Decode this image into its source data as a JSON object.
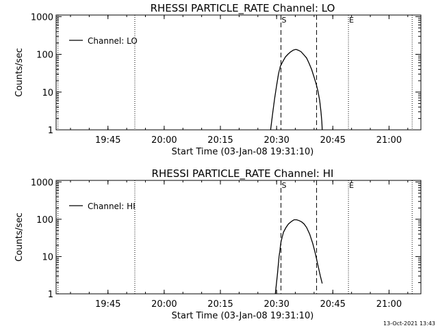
{
  "chart_data": [
    {
      "type": "line",
      "title": "RHESSI PARTICLE_RATE Channel: LO",
      "xlabel": "Start Time (03-Jan-08 19:31:10)",
      "ylabel": "Counts/sec",
      "y_scale": "log",
      "ylim": [
        1,
        1100
      ],
      "xlim": [
        "19:31:10",
        "21:08:30"
      ],
      "x_ticks": [
        "19:45",
        "20:00",
        "20:15",
        "20:30",
        "20:45",
        "21:00"
      ],
      "y_ticks": [
        "1",
        "10",
        "100",
        "1000"
      ],
      "legend": {
        "label": "Channel: LO",
        "placement": "top-left"
      },
      "markers": [
        {
          "time": "19:31:40",
          "style": "dotted",
          "label": ""
        },
        {
          "time": "19:52:10",
          "style": "dotted",
          "label": ""
        },
        {
          "time": "20:31:10",
          "style": "dashed",
          "label": "S"
        },
        {
          "time": "20:40:40",
          "style": "dashed",
          "label": ""
        },
        {
          "time": "20:49:10",
          "style": "dotted",
          "label": "E"
        },
        {
          "time": "21:06:10",
          "style": "dotted",
          "label": ""
        }
      ],
      "series": [
        {
          "name": "Channel: LO",
          "points": [
            [
              "20:28:24",
              1
            ],
            [
              "20:29:00",
              3
            ],
            [
              "20:29:30",
              7
            ],
            [
              "20:30:00",
              15
            ],
            [
              "20:30:30",
              30
            ],
            [
              "20:31:00",
              48
            ],
            [
              "20:31:40",
              65
            ],
            [
              "20:32:20",
              85
            ],
            [
              "20:33:00",
              100
            ],
            [
              "20:33:40",
              115
            ],
            [
              "20:34:30",
              130
            ],
            [
              "20:35:10",
              135
            ],
            [
              "20:35:50",
              128
            ],
            [
              "20:36:30",
              118
            ],
            [
              "20:37:10",
              100
            ],
            [
              "20:38:00",
              80
            ],
            [
              "20:38:40",
              58
            ],
            [
              "20:39:20",
              40
            ],
            [
              "20:40:00",
              25
            ],
            [
              "20:40:30",
              17
            ],
            [
              "20:41:00",
              11
            ],
            [
              "20:41:30",
              6
            ],
            [
              "20:41:50",
              3
            ],
            [
              "20:42:05",
              1.6
            ],
            [
              "20:42:10",
              1
            ]
          ]
        }
      ]
    },
    {
      "type": "line",
      "title": "RHESSI PARTICLE_RATE Channel: HI",
      "xlabel": "Start Time (03-Jan-08 19:31:10)",
      "ylabel": "Counts/sec",
      "y_scale": "log",
      "ylim": [
        1,
        1100
      ],
      "xlim": [
        "19:31:10",
        "21:08:30"
      ],
      "x_ticks": [
        "19:45",
        "20:00",
        "20:15",
        "20:30",
        "20:45",
        "21:00"
      ],
      "y_ticks": [
        "1",
        "10",
        "100",
        "1000"
      ],
      "legend": {
        "label": "Channel: HI",
        "placement": "top-left"
      },
      "markers": [
        {
          "time": "19:31:40",
          "style": "dotted",
          "label": ""
        },
        {
          "time": "19:52:10",
          "style": "dotted",
          "label": ""
        },
        {
          "time": "20:31:10",
          "style": "dashed",
          "label": "S"
        },
        {
          "time": "20:40:40",
          "style": "dashed",
          "label": ""
        },
        {
          "time": "20:49:10",
          "style": "dotted",
          "label": "E"
        },
        {
          "time": "21:06:10",
          "style": "dotted",
          "label": ""
        }
      ],
      "series": [
        {
          "name": "Channel: HI",
          "points": [
            [
              "20:29:40",
              1
            ],
            [
              "20:30:10",
              3
            ],
            [
              "20:30:40",
              10
            ],
            [
              "20:31:10",
              25
            ],
            [
              "20:31:50",
              45
            ],
            [
              "20:32:30",
              60
            ],
            [
              "20:33:10",
              75
            ],
            [
              "20:34:00",
              88
            ],
            [
              "20:34:40",
              97
            ],
            [
              "20:35:20",
              97
            ],
            [
              "20:36:00",
              92
            ],
            [
              "20:36:40",
              85
            ],
            [
              "20:37:20",
              75
            ],
            [
              "20:38:00",
              60
            ],
            [
              "20:38:50",
              40
            ],
            [
              "20:39:40",
              22
            ],
            [
              "20:40:20",
              12
            ],
            [
              "20:41:00",
              6
            ],
            [
              "20:41:40",
              3
            ],
            [
              "20:42:10",
              1.9
            ]
          ]
        }
      ]
    }
  ],
  "footer": {
    "timestamp": "13-Oct-2021 13:43"
  }
}
